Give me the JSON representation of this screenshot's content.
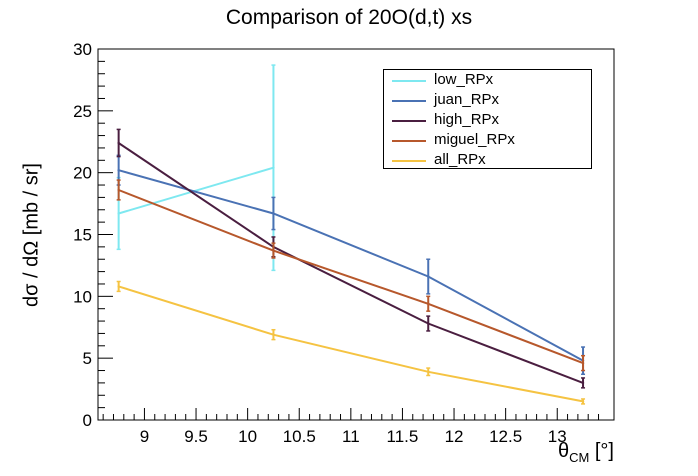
{
  "chart_data": {
    "type": "line",
    "title": "Comparison of 20O(d,t) xs",
    "ylabel": "dσ / dΩ [mb / sr]",
    "xlabel": {
      "main": "θ",
      "sub": "CM",
      "unit": "[°]"
    },
    "xlim": [
      8.55,
      13.55
    ],
    "ylim": [
      0,
      30
    ],
    "xticks": [
      9,
      9.5,
      10,
      10.5,
      11,
      11.5,
      12,
      12.5,
      13
    ],
    "xtick_labels": [
      "9",
      "9.5",
      "10",
      "10.5",
      "11",
      "11.5",
      "12",
      "12.5",
      "13"
    ],
    "yticks": [
      0,
      5,
      10,
      15,
      20,
      25,
      30
    ],
    "ytick_labels": [
      "0",
      "5",
      "10",
      "15",
      "20",
      "25",
      "30"
    ],
    "legend": "top-right",
    "series": [
      {
        "name": "low_RPx",
        "color": "#7ee8f0",
        "points": [
          {
            "x": 8.75,
            "y": 16.7,
            "err": 2.9
          },
          {
            "x": 10.25,
            "y": 20.4,
            "err": 8.3
          }
        ]
      },
      {
        "name": "juan_RPx",
        "color": "#4a72b4",
        "points": [
          {
            "x": 8.75,
            "y": 20.2,
            "err": 1.2
          },
          {
            "x": 10.25,
            "y": 16.7,
            "err": 1.3
          },
          {
            "x": 11.75,
            "y": 11.6,
            "err": 1.4
          },
          {
            "x": 13.25,
            "y": 4.8,
            "err": 1.1
          }
        ]
      },
      {
        "name": "high_RPx",
        "color": "#4a1e40",
        "points": [
          {
            "x": 8.75,
            "y": 22.4,
            "err": 1.1
          },
          {
            "x": 10.25,
            "y": 14.0,
            "err": 0.8
          },
          {
            "x": 11.75,
            "y": 7.8,
            "err": 0.6
          },
          {
            "x": 13.25,
            "y": 3.0,
            "err": 0.4
          }
        ]
      },
      {
        "name": "miguel_RPx",
        "color": "#b7582c",
        "points": [
          {
            "x": 8.75,
            "y": 18.6,
            "err": 0.8
          },
          {
            "x": 10.25,
            "y": 13.7,
            "err": 0.6
          },
          {
            "x": 11.75,
            "y": 9.4,
            "err": 0.6
          },
          {
            "x": 13.25,
            "y": 4.6,
            "err": 0.6
          }
        ]
      },
      {
        "name": "all_RPx",
        "color": "#f5c342",
        "points": [
          {
            "x": 8.75,
            "y": 10.8,
            "err": 0.4
          },
          {
            "x": 10.25,
            "y": 6.9,
            "err": 0.4
          },
          {
            "x": 11.75,
            "y": 3.9,
            "err": 0.3
          },
          {
            "x": 13.25,
            "y": 1.5,
            "err": 0.2
          }
        ]
      }
    ]
  }
}
